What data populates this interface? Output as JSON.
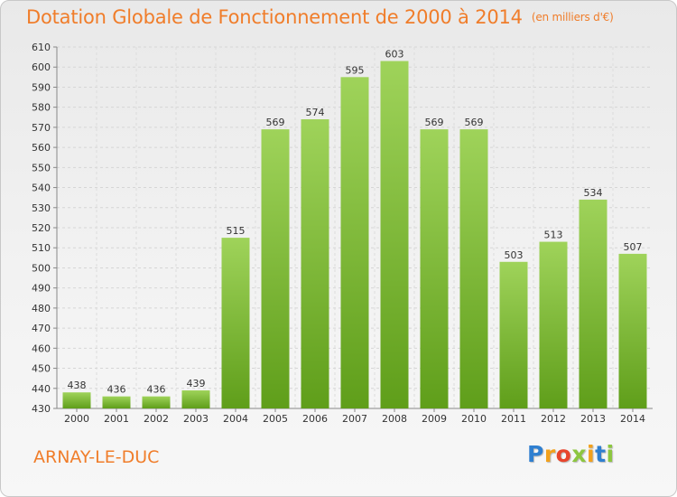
{
  "header": {
    "title": "Dotation Globale de Fonctionnement de 2000 à 2014",
    "unit": "(en milliers d'€)"
  },
  "footer": {
    "city": "ARNAY-LE-DUC",
    "logo_letters": [
      "P",
      "r",
      "o",
      "x",
      "i",
      "t",
      "i"
    ],
    "logo_colors": [
      "#2f7fd0",
      "#f2a11c",
      "#e8452c",
      "#8cc63f",
      "#f2a11c",
      "#2f7fd0",
      "#8cc63f"
    ]
  },
  "chart_data": {
    "type": "bar",
    "categories": [
      "2000",
      "2001",
      "2002",
      "2003",
      "2004",
      "2005",
      "2006",
      "2007",
      "2008",
      "2009",
      "2010",
      "2011",
      "2012",
      "2013",
      "2014"
    ],
    "values": [
      438,
      436,
      436,
      439,
      515,
      569,
      574,
      595,
      603,
      569,
      569,
      503,
      513,
      534,
      507
    ],
    "ylim": [
      430,
      610
    ],
    "yticks": [
      430,
      440,
      450,
      460,
      470,
      480,
      490,
      500,
      510,
      520,
      530,
      540,
      550,
      560,
      570,
      580,
      590,
      600,
      610
    ],
    "grid": true,
    "bar_color_top": "#9fd35a",
    "bar_color_bottom": "#5f9e1a"
  }
}
